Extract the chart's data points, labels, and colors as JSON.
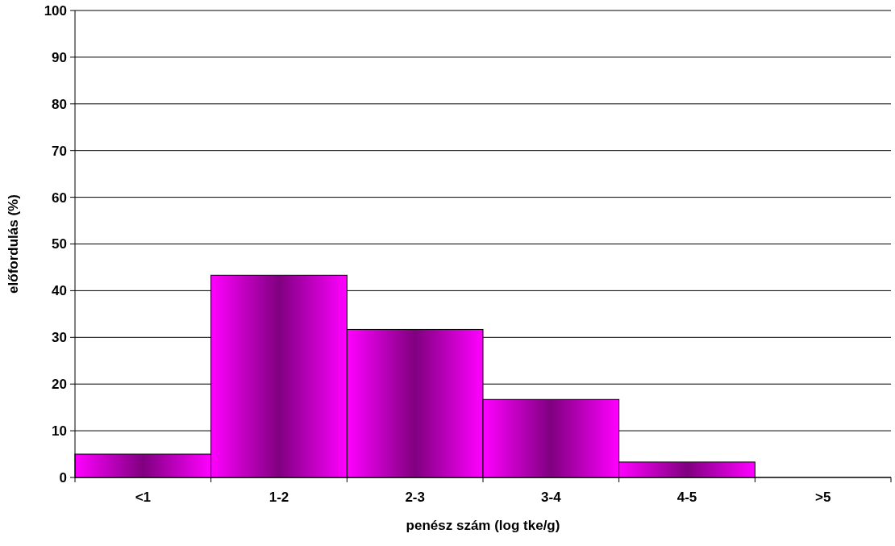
{
  "chart_data": {
    "type": "bar",
    "xlabel": "penész szám (log tke/g)",
    "ylabel": "előfordulás (%)",
    "categories": [
      "<1",
      "1-2",
      "2-3",
      "3-4",
      "4-5",
      ">5"
    ],
    "values": [
      5,
      43.3,
      31.7,
      16.7,
      3.3,
      0
    ],
    "color": "#ff00ff",
    "ylim": [
      0,
      100
    ],
    "yticks": [
      0,
      10,
      20,
      30,
      40,
      50,
      60,
      70,
      80,
      90,
      100
    ],
    "grid": "y"
  }
}
